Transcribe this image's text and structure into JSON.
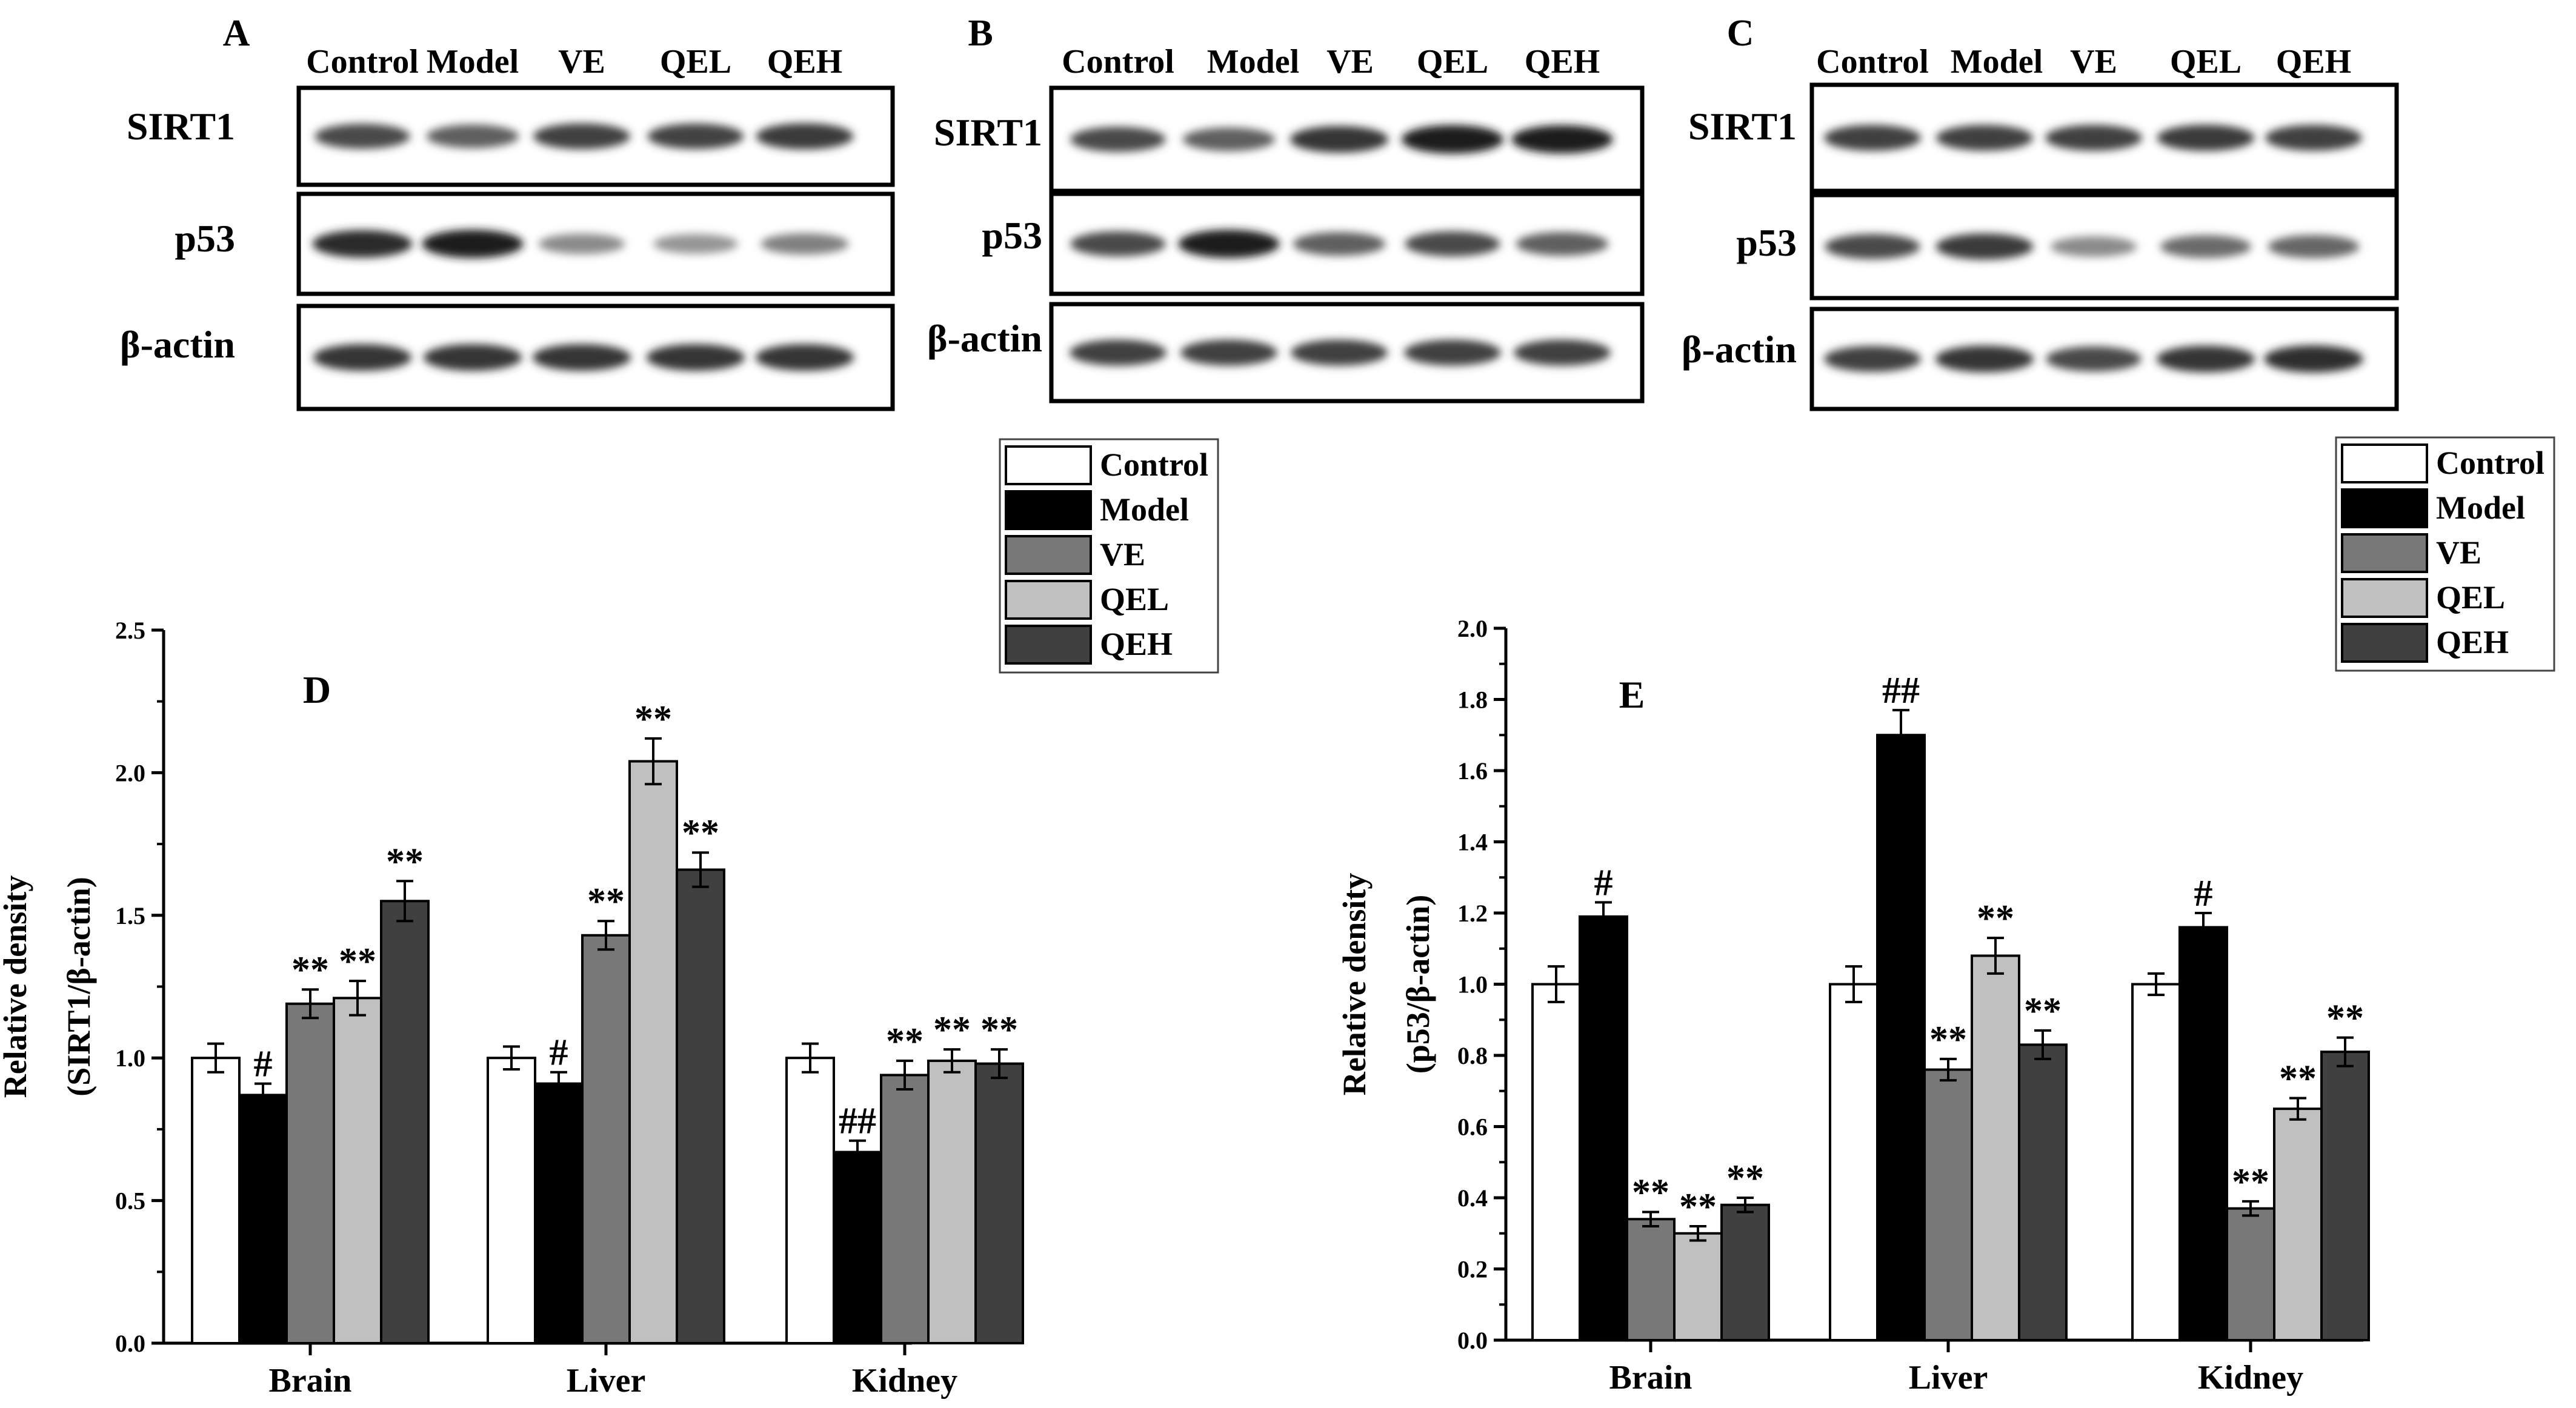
{
  "figure": {
    "groups": [
      "Control",
      "Model",
      "VE",
      "QEL",
      "QEH"
    ],
    "colors": {
      "Control": "#ffffff",
      "Model": "#000000",
      "VE": "#787878",
      "QEL": "#c0c0c0",
      "QEH": "#404040"
    }
  },
  "blots": [
    {
      "panel_label": "A",
      "lanes": [
        "Control",
        "Model",
        "VE",
        "QEL",
        "QEH"
      ],
      "rows": [
        {
          "label": "SIRT1",
          "intensities": [
            0.75,
            0.65,
            0.8,
            0.78,
            0.82
          ]
        },
        {
          "label": "p53",
          "intensities": [
            0.9,
            0.95,
            0.45,
            0.4,
            0.5
          ]
        },
        {
          "label": "β-actin",
          "intensities": [
            0.85,
            0.85,
            0.85,
            0.85,
            0.85
          ]
        }
      ]
    },
    {
      "panel_label": "B",
      "lanes": [
        "Control",
        "Model",
        "VE",
        "QEL",
        "QEH"
      ],
      "rows": [
        {
          "label": "SIRT1",
          "intensities": [
            0.75,
            0.65,
            0.85,
            0.97,
            0.95
          ]
        },
        {
          "label": "p53",
          "intensities": [
            0.75,
            0.95,
            0.65,
            0.75,
            0.65
          ]
        },
        {
          "label": "β-actin",
          "intensities": [
            0.8,
            0.8,
            0.8,
            0.8,
            0.8
          ]
        }
      ]
    },
    {
      "panel_label": "C",
      "lanes": [
        "Control",
        "Model",
        "VE",
        "QEL",
        "QEH"
      ],
      "rows": [
        {
          "label": "SIRT1",
          "intensities": [
            0.8,
            0.8,
            0.8,
            0.82,
            0.8
          ]
        },
        {
          "label": "p53",
          "intensities": [
            0.75,
            0.82,
            0.45,
            0.6,
            0.62
          ]
        },
        {
          "label": "β-actin",
          "intensities": [
            0.8,
            0.85,
            0.75,
            0.85,
            0.88
          ]
        }
      ]
    }
  ],
  "chart_data": [
    {
      "type": "bar",
      "panel_label": "D",
      "title": "",
      "xlabel": "",
      "ylabel_lines": [
        "Relative density",
        "(SIRT1/β-actin)"
      ],
      "ylim": [
        0,
        2.5
      ],
      "yticks": [
        "0.0",
        "0.5",
        "1.0",
        "1.5",
        "2.0",
        "2.5"
      ],
      "minor_tick_step": 0.25,
      "categories": [
        "Brain",
        "Liver",
        "Kidney"
      ],
      "series": [
        {
          "name": "Control",
          "values": [
            1.0,
            1.0,
            1.0
          ],
          "errors": [
            0.05,
            0.04,
            0.05
          ],
          "annotations": [
            "",
            "",
            ""
          ]
        },
        {
          "name": "Model",
          "values": [
            0.87,
            0.91,
            0.67
          ],
          "errors": [
            0.04,
            0.04,
            0.04
          ],
          "annotations": [
            "#",
            "#",
            "##"
          ]
        },
        {
          "name": "VE",
          "values": [
            1.19,
            1.43,
            0.94
          ],
          "errors": [
            0.05,
            0.05,
            0.05
          ],
          "annotations": [
            "**",
            "**",
            "**"
          ]
        },
        {
          "name": "QEL",
          "values": [
            1.21,
            2.04,
            0.99
          ],
          "errors": [
            0.06,
            0.08,
            0.04
          ],
          "annotations": [
            "**",
            "**",
            "**"
          ]
        },
        {
          "name": "QEH",
          "values": [
            1.55,
            1.66,
            0.98
          ],
          "errors": [
            0.07,
            0.06,
            0.05
          ],
          "annotations": [
            "**",
            "**",
            "**"
          ]
        }
      ],
      "legend": [
        "Control",
        "Model",
        "VE",
        "QEL",
        "QEH"
      ]
    },
    {
      "type": "bar",
      "panel_label": "E",
      "title": "",
      "xlabel": "",
      "ylabel_lines": [
        "Relative density",
        "(p53/β-actin)"
      ],
      "ylim": [
        0,
        2.0
      ],
      "yticks": [
        "0.0",
        "0.2",
        "0.4",
        "0.6",
        "0.8",
        "1.0",
        "1.2",
        "1.4",
        "1.6",
        "1.8",
        "2.0"
      ],
      "minor_tick_step": 0.1,
      "categories": [
        "Brain",
        "Liver",
        "Kidney"
      ],
      "series": [
        {
          "name": "Control",
          "values": [
            1.0,
            1.0,
            1.0
          ],
          "errors": [
            0.05,
            0.05,
            0.03
          ],
          "annotations": [
            "",
            "",
            ""
          ]
        },
        {
          "name": "Model",
          "values": [
            1.19,
            1.7,
            1.16
          ],
          "errors": [
            0.04,
            0.07,
            0.04
          ],
          "annotations": [
            "#",
            "##",
            "#"
          ]
        },
        {
          "name": "VE",
          "values": [
            0.34,
            0.76,
            0.37
          ],
          "errors": [
            0.02,
            0.03,
            0.02
          ],
          "annotations": [
            "**",
            "**",
            "**"
          ]
        },
        {
          "name": "QEL",
          "values": [
            0.3,
            1.08,
            0.65
          ],
          "errors": [
            0.02,
            0.05,
            0.03
          ],
          "annotations": [
            "**",
            "**",
            "**"
          ]
        },
        {
          "name": "QEH",
          "values": [
            0.38,
            0.83,
            0.81
          ],
          "errors": [
            0.02,
            0.04,
            0.04
          ],
          "annotations": [
            "**",
            "**",
            "**"
          ]
        }
      ],
      "legend": [
        "Control",
        "Model",
        "VE",
        "QEL",
        "QEH"
      ]
    }
  ]
}
